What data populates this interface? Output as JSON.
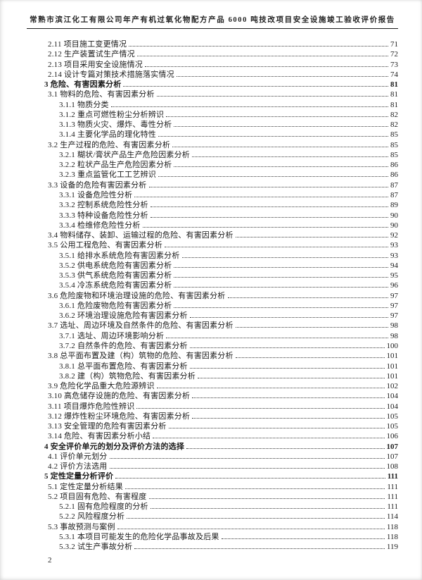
{
  "page": {
    "header": "常熟市滨江化工有限公司年产有机过氧化物配方产品 6000 吨技改项目安全设施竣工验收评价报告",
    "page_number": "2",
    "text_color": "#1b1b1b",
    "background_color": "#ffffff"
  },
  "toc": {
    "entries": [
      {
        "label": "2.11 项目施工变更情况",
        "page": "71",
        "level": 2,
        "bold": false
      },
      {
        "label": "2.12 生产装置试生产情况",
        "page": "72",
        "level": 2,
        "bold": false
      },
      {
        "label": "2.13 项目采用安全设施情况",
        "page": "73",
        "level": 2,
        "bold": false
      },
      {
        "label": "2.14 设计专篇对策技术措施落实情况",
        "page": "74",
        "level": 2,
        "bold": false
      },
      {
        "label": "3 危险、有害因素分析",
        "page": "81",
        "level": 1,
        "bold": true
      },
      {
        "label": "3.1 物料的危险、有害因素分析",
        "page": "81",
        "level": 2,
        "bold": false
      },
      {
        "label": "3.1.1 物质分类",
        "page": "81",
        "level": 3,
        "bold": false
      },
      {
        "label": "3.1.2 重点可燃性粉尘分析辨识",
        "page": "82",
        "level": 3,
        "bold": false
      },
      {
        "label": "3.1.3 物质火灾、爆炸、毒性分析",
        "page": "82",
        "level": 3,
        "bold": false
      },
      {
        "label": "3.1.4 主要化学品的理化特性",
        "page": "85",
        "level": 3,
        "bold": false
      },
      {
        "label": "3.2 生产过程的危险、有害因素分析",
        "page": "85",
        "level": 2,
        "bold": false
      },
      {
        "label": "3.2.1 糊状/膏状产品生产危险因素分析",
        "page": "85",
        "level": 3,
        "bold": false
      },
      {
        "label": "3.2.2 粒状产品生产危险因素分析",
        "page": "86",
        "level": 3,
        "bold": false
      },
      {
        "label": "3.2.3 重点监管化工工艺辨识",
        "page": "86",
        "level": 3,
        "bold": false
      },
      {
        "label": "3.3 设备的危险有害因素分析",
        "page": "87",
        "level": 2,
        "bold": false
      },
      {
        "label": "3.3.1 设备危险性分析",
        "page": "87",
        "level": 3,
        "bold": false
      },
      {
        "label": "3.3.2 控制系统危险性分析",
        "page": "89",
        "level": 3,
        "bold": false
      },
      {
        "label": "3.3.3 特种设备危险性分析",
        "page": "90",
        "level": 3,
        "bold": false
      },
      {
        "label": "3.3.4 检维修危险性分析",
        "page": "90",
        "level": 3,
        "bold": false
      },
      {
        "label": "3.4 物料储存、装卸、运输过程的危险、有害因素分析",
        "page": "92",
        "level": 2,
        "bold": false
      },
      {
        "label": "3.5 公用工程危险、有害因素分析",
        "page": "93",
        "level": 2,
        "bold": false
      },
      {
        "label": "3.5.1 给排水系统危险有害因素分析",
        "page": "93",
        "level": 3,
        "bold": false
      },
      {
        "label": "3.5.2 供电系统危险有害因素分析",
        "page": "94",
        "level": 3,
        "bold": false
      },
      {
        "label": "3.5.3 供气系统危险有害因素分析",
        "page": "95",
        "level": 3,
        "bold": false
      },
      {
        "label": "3.5.4 冷冻系统危险有害因素分析",
        "page": "96",
        "level": 3,
        "bold": false
      },
      {
        "label": "3.6 危险废物和环境治理设施的危险、有害因素分析",
        "page": "97",
        "level": 2,
        "bold": false
      },
      {
        "label": "3.6.1 危险废物危险有害因素分析",
        "page": "97",
        "level": 3,
        "bold": false
      },
      {
        "label": "3.6.2 环境治理设施危险有害因素分析",
        "page": "97",
        "level": 3,
        "bold": false
      },
      {
        "label": "3.7 选址、周边环境及自然条件的危险、有害因素分析",
        "page": "98",
        "level": 2,
        "bold": false
      },
      {
        "label": "3.7.1 选址、周边环境影响分析",
        "page": "98",
        "level": 3,
        "bold": false
      },
      {
        "label": "3.7.2 自然条件的危险、有害因素分析",
        "page": "100",
        "level": 3,
        "bold": false
      },
      {
        "label": "3.8 总平面布置及建（构）筑物的危险、有害因素分析",
        "page": "101",
        "level": 2,
        "bold": false
      },
      {
        "label": "3.8.1 总平面布置危险、有害因素分析",
        "page": "101",
        "level": 3,
        "bold": false
      },
      {
        "label": "3.8.2 建（构）筑物危险、有害因素分析",
        "page": "101",
        "level": 3,
        "bold": false
      },
      {
        "label": "3.9 危险化学品重大危险源辨识",
        "page": "102",
        "level": 2,
        "bold": false
      },
      {
        "label": "3.10 高危储存设施的危险、有害因素分析",
        "page": "104",
        "level": 2,
        "bold": false
      },
      {
        "label": "3.11 项目爆炸危险性辨识",
        "page": "104",
        "level": 2,
        "bold": false
      },
      {
        "label": "3.12 爆炸性粉尘环境危险、有害因素分析",
        "page": "105",
        "level": 2,
        "bold": false
      },
      {
        "label": "3.13 安全管理的危险有害因素分析",
        "page": "105",
        "level": 2,
        "bold": false
      },
      {
        "label": "3.14 危险、有害因素分析小结",
        "page": "106",
        "level": 2,
        "bold": false
      },
      {
        "label": "4 安全评价单元的划分及评价方法的选择",
        "page": "107",
        "level": 1,
        "bold": true
      },
      {
        "label": "4.1 评价单元划分",
        "page": "107",
        "level": 2,
        "bold": false
      },
      {
        "label": "4.2 评价方法选用",
        "page": "108",
        "level": 2,
        "bold": false
      },
      {
        "label": "5 定性定量分析评价",
        "page": "111",
        "level": 1,
        "bold": true
      },
      {
        "label": "5.1 定性定量分析结果",
        "page": "111",
        "level": 2,
        "bold": false
      },
      {
        "label": "5.2 项目固有危险、有害程度",
        "page": "111",
        "level": 2,
        "bold": false
      },
      {
        "label": "5.2.1 固有危险程度的分析",
        "page": "111",
        "level": 3,
        "bold": false
      },
      {
        "label": "5.2.2 风险程度分析",
        "page": "114",
        "level": 3,
        "bold": false
      },
      {
        "label": "5.3 事故预测与案例",
        "page": "118",
        "level": 2,
        "bold": false
      },
      {
        "label": "5.3.1 本项目可能发生的危险化学品事故及后果",
        "page": "118",
        "level": 3,
        "bold": false
      },
      {
        "label": "5.3.2 试生产事故分析",
        "page": "119",
        "level": 3,
        "bold": false
      }
    ]
  }
}
